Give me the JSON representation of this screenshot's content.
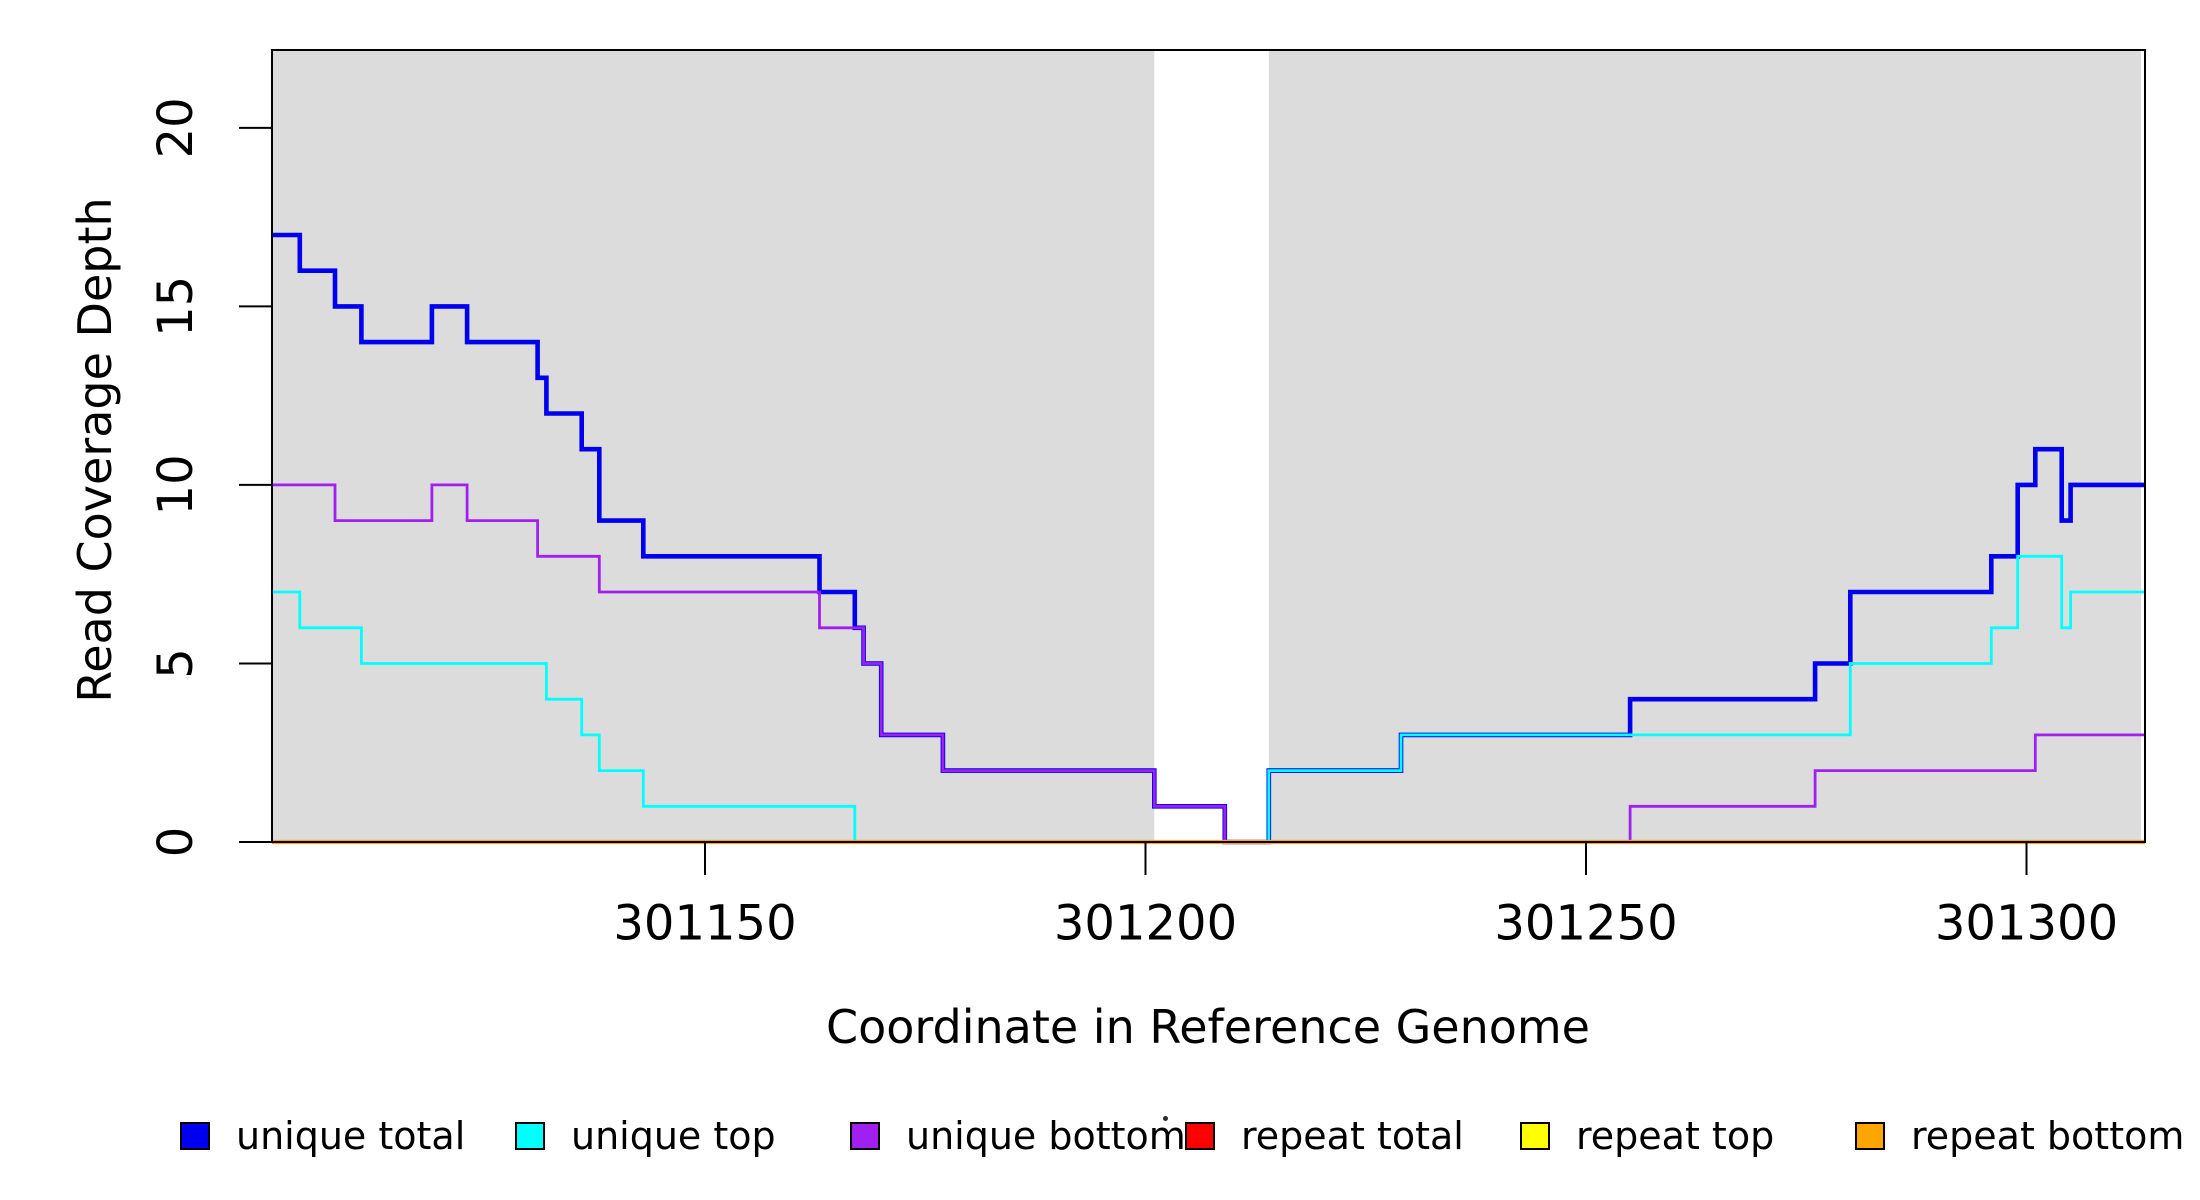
{
  "figure": {
    "background": "#ffffff",
    "box_color": "#000000"
  },
  "chart_data": {
    "type": "line",
    "subtype": "step-post",
    "title": "",
    "xlabel": "Coordinate in Reference Genome",
    "ylabel": "Read Coverage Depth",
    "xlim": [
      301100.85,
      301313.45
    ],
    "ylim": [
      0,
      22.18
    ],
    "x_ticks": [
      301150,
      301200,
      301250,
      301300
    ],
    "y_ticks": [
      0,
      5,
      10,
      15,
      20
    ],
    "grid": false,
    "legend_position": "bottom",
    "highlight_regions": [
      {
        "name": "match-region-left",
        "x0": 301100.85,
        "x1": 301201,
        "color": "#DCDCDC"
      },
      {
        "name": "match-region-right",
        "x0": 301214,
        "x1": 301313,
        "color": "#DCDCDC"
      }
    ],
    "series": [
      {
        "name": "unique total",
        "color": "#0000EE",
        "line_width": 4.6,
        "steps": [
          [
            301101,
            17
          ],
          [
            301104,
            16
          ],
          [
            301108,
            15
          ],
          [
            301111,
            14
          ],
          [
            301119,
            15
          ],
          [
            301123,
            14
          ],
          [
            301131,
            13
          ],
          [
            301132,
            12
          ],
          [
            301136,
            11
          ],
          [
            301138,
            9
          ],
          [
            301143,
            8
          ],
          [
            301163,
            7
          ],
          [
            301167,
            6
          ],
          [
            301168,
            5
          ],
          [
            301170,
            3
          ],
          [
            301177,
            2
          ],
          [
            301201,
            1
          ],
          [
            301209,
            0
          ],
          [
            301214,
            2
          ],
          [
            301229,
            3
          ],
          [
            301255,
            4
          ],
          [
            301276,
            5
          ],
          [
            301280,
            7
          ],
          [
            301296,
            8
          ],
          [
            301299,
            10
          ],
          [
            301301,
            11
          ],
          [
            301304,
            9
          ],
          [
            301305,
            10
          ]
        ]
      },
      {
        "name": "unique top",
        "color": "#00FFFF",
        "line_width": 2.8,
        "steps": [
          [
            301101,
            7
          ],
          [
            301104,
            6
          ],
          [
            301111,
            5
          ],
          [
            301132,
            4
          ],
          [
            301136,
            3
          ],
          [
            301138,
            2
          ],
          [
            301143,
            1
          ],
          [
            301167,
            0
          ],
          [
            301214,
            2
          ],
          [
            301229,
            3
          ],
          [
            301280,
            5
          ],
          [
            301296,
            6
          ],
          [
            301299,
            8
          ],
          [
            301304,
            6
          ],
          [
            301305,
            7
          ]
        ]
      },
      {
        "name": "unique bottom",
        "color": "#A020F0",
        "line_width": 2.8,
        "steps": [
          [
            301101,
            10
          ],
          [
            301108,
            9
          ],
          [
            301119,
            10
          ],
          [
            301123,
            9
          ],
          [
            301131,
            8
          ],
          [
            301138,
            7
          ],
          [
            301163,
            6
          ],
          [
            301168,
            5
          ],
          [
            301170,
            3
          ],
          [
            301177,
            2
          ],
          [
            301201,
            1
          ],
          [
            301209,
            0
          ],
          [
            301255,
            1
          ],
          [
            301276,
            2
          ],
          [
            301301,
            3
          ]
        ]
      },
      {
        "name": "repeat total",
        "color": "#FF0000",
        "line_width": 2.8,
        "steps": [
          [
            301101,
            0
          ]
        ]
      },
      {
        "name": "repeat top",
        "color": "#FFFF00",
        "line_width": 2.8,
        "steps": [
          [
            301101,
            0
          ]
        ]
      },
      {
        "name": "repeat bottom",
        "color": "#FFA500",
        "line_width": 4.2,
        "steps": [
          [
            301101,
            0
          ]
        ]
      }
    ]
  },
  "legend": {
    "items": [
      {
        "label": "unique total",
        "color": "#0000EE"
      },
      {
        "label": "unique top",
        "color": "#00FFFF"
      },
      {
        "label": "unique bottom",
        "color": "#A020F0"
      },
      {
        "label": "repeat total",
        "color": "#FF0000"
      },
      {
        "label": "repeat top",
        "color": "#FFFF00"
      },
      {
        "label": "repeat bottom",
        "color": "#FFA500"
      }
    ]
  }
}
